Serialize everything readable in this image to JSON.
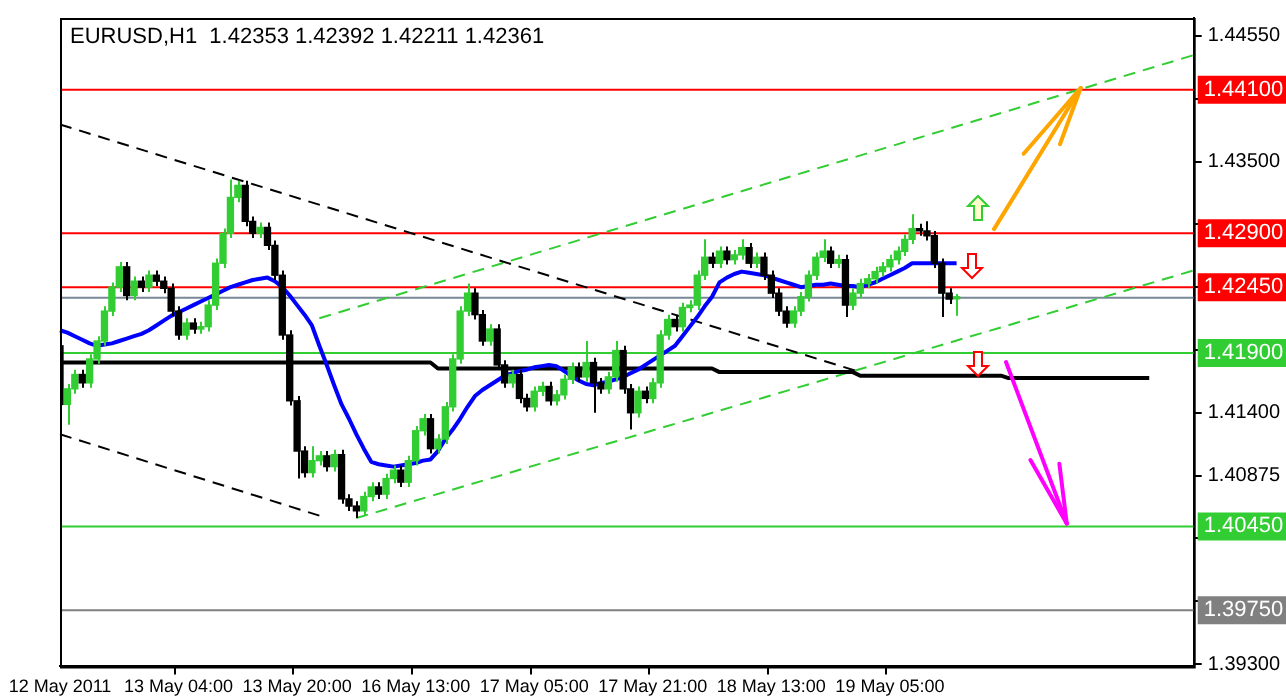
{
  "chart_data": {
    "type": "candlestick",
    "title": "EURUSD,H1  1.42353 1.42392 1.42211 1.42361",
    "categories": [
      "12 May 2011",
      null,
      null,
      null,
      null,
      null,
      null,
      null,
      null,
      null,
      null,
      null,
      null,
      null,
      null,
      null,
      "13 May 04:00",
      null,
      null,
      null,
      null,
      null,
      null,
      null,
      null,
      null,
      null,
      null,
      null,
      null,
      null,
      null,
      "13 May 20:00",
      null,
      null,
      null,
      null,
      null,
      null,
      null,
      null,
      null,
      null,
      null,
      null,
      null,
      null,
      null,
      "16 May 13:00",
      null,
      null,
      null,
      null,
      null,
      null,
      null,
      null,
      null,
      null,
      null,
      null,
      null,
      null,
      null,
      "17 May 05:00",
      null,
      null,
      null,
      null,
      null,
      null,
      null,
      null,
      null,
      null,
      null,
      null,
      null,
      null,
      null,
      "17 May 21:00",
      null,
      null,
      null,
      null,
      null,
      null,
      null,
      null,
      null,
      null,
      null,
      null,
      null,
      null,
      null,
      "18 May 13:00",
      null,
      null,
      null,
      null,
      null,
      null,
      null,
      null,
      null,
      null,
      null,
      null,
      null,
      null,
      null,
      "19 May 05:00",
      null,
      null,
      null,
      null,
      null,
      null,
      null,
      null,
      null,
      null,
      null,
      null,
      null,
      null,
      null,
      null,
      null,
      null,
      null,
      null,
      null,
      null,
      null,
      null,
      null,
      null,
      null,
      null,
      null,
      null,
      null,
      null,
      null,
      null,
      null,
      null,
      null,
      null,
      null,
      null,
      null
    ],
    "series": [
      {
        "type": "candlestick",
        "ohlc": [
          [
            1.4196,
            1.42,
            1.4143,
            1.4147
          ],
          [
            1.4147,
            1.4164,
            1.413,
            1.416
          ],
          [
            1.416,
            1.4176,
            1.4156,
            1.4172
          ],
          [
            1.4172,
            1.4176,
            1.4161,
            1.4165
          ],
          [
            1.4165,
            1.4189,
            1.4161,
            1.4185
          ],
          [
            1.4185,
            1.4204,
            1.4181,
            1.42
          ],
          [
            1.42,
            1.4229,
            1.4196,
            1.4225
          ],
          [
            1.4225,
            1.4249,
            1.4221,
            1.4245
          ],
          [
            1.4245,
            1.4266,
            1.4241,
            1.4262
          ],
          [
            1.4262,
            1.4266,
            1.4234,
            1.4238
          ],
          [
            1.4238,
            1.4254,
            1.4234,
            1.425
          ],
          [
            1.425,
            1.4254,
            1.4241,
            1.4245
          ],
          [
            1.4245,
            1.4259,
            1.4241,
            1.4255
          ],
          [
            1.4255,
            1.4259,
            1.4246,
            1.425
          ],
          [
            1.425,
            1.4254,
            1.424,
            1.4244
          ],
          [
            1.4244,
            1.4248,
            1.4221,
            1.4225
          ],
          [
            1.4225,
            1.4229,
            1.4201,
            1.4205
          ],
          [
            1.4205,
            1.4219,
            1.4201,
            1.4215
          ],
          [
            1.4215,
            1.4219,
            1.4206,
            1.421
          ],
          [
            1.421,
            1.4216,
            1.4206,
            1.4212
          ],
          [
            1.4212,
            1.4234,
            1.4208,
            1.423
          ],
          [
            1.423,
            1.4269,
            1.4226,
            1.4265
          ],
          [
            1.4265,
            1.4294,
            1.4261,
            1.429
          ],
          [
            1.429,
            1.4335,
            1.4286,
            1.432
          ],
          [
            1.432,
            1.4334,
            1.4316,
            1.433
          ],
          [
            1.433,
            1.4334,
            1.4296,
            1.43
          ],
          [
            1.43,
            1.4304,
            1.4286,
            1.429
          ],
          [
            1.429,
            1.4299,
            1.4286,
            1.4295
          ],
          [
            1.4295,
            1.4299,
            1.4276,
            1.428
          ],
          [
            1.428,
            1.4284,
            1.4251,
            1.4255
          ],
          [
            1.4255,
            1.4259,
            1.4201,
            1.4205
          ],
          [
            1.4205,
            1.4209,
            1.4146,
            1.415
          ],
          [
            1.415,
            1.4154,
            1.4085,
            1.4108
          ],
          [
            1.4108,
            1.4112,
            1.4086,
            1.409
          ],
          [
            1.409,
            1.4112,
            1.4086,
            1.41
          ],
          [
            1.41,
            1.4108,
            1.4096,
            1.4104
          ],
          [
            1.4104,
            1.4108,
            1.4091,
            1.4095
          ],
          [
            1.4095,
            1.4109,
            1.4091,
            1.4105
          ],
          [
            1.4105,
            1.4109,
            1.4064,
            1.4068
          ],
          [
            1.4068,
            1.4072,
            1.4058,
            1.4062
          ],
          [
            1.4062,
            1.4066,
            1.4052,
            1.4058
          ],
          [
            1.4058,
            1.4074,
            1.4054,
            1.407
          ],
          [
            1.407,
            1.4082,
            1.4066,
            1.4078
          ],
          [
            1.4078,
            1.4082,
            1.4068,
            1.4072
          ],
          [
            1.4072,
            1.4089,
            1.4068,
            1.4085
          ],
          [
            1.4085,
            1.4096,
            1.4081,
            1.4092
          ],
          [
            1.4092,
            1.4096,
            1.4078,
            1.4082
          ],
          [
            1.4082,
            1.4104,
            1.4078,
            1.41
          ],
          [
            1.41,
            1.4129,
            1.4096,
            1.4125
          ],
          [
            1.4125,
            1.4139,
            1.4121,
            1.4135
          ],
          [
            1.4135,
            1.4139,
            1.4106,
            1.411
          ],
          [
            1.411,
            1.4122,
            1.4106,
            1.4118
          ],
          [
            1.4118,
            1.4149,
            1.4114,
            1.4145
          ],
          [
            1.4145,
            1.4189,
            1.4141,
            1.4185
          ],
          [
            1.4185,
            1.4229,
            1.4181,
            1.4225
          ],
          [
            1.4225,
            1.4248,
            1.4221,
            1.424
          ],
          [
            1.424,
            1.4244,
            1.4218,
            1.4222
          ],
          [
            1.4222,
            1.4226,
            1.4196,
            1.42
          ],
          [
            1.42,
            1.4214,
            1.4196,
            1.421
          ],
          [
            1.421,
            1.4214,
            1.4176,
            1.418
          ],
          [
            1.418,
            1.4184,
            1.4161,
            1.4165
          ],
          [
            1.4165,
            1.4176,
            1.4161,
            1.4172
          ],
          [
            1.4172,
            1.4176,
            1.4148,
            1.4152
          ],
          [
            1.4152,
            1.4156,
            1.4141,
            1.4145
          ],
          [
            1.4145,
            1.4162,
            1.4141,
            1.4158
          ],
          [
            1.4158,
            1.4166,
            1.4154,
            1.4162
          ],
          [
            1.4162,
            1.4166,
            1.4146,
            1.415
          ],
          [
            1.415,
            1.4159,
            1.4146,
            1.4155
          ],
          [
            1.4155,
            1.4172,
            1.4151,
            1.4168
          ],
          [
            1.4168,
            1.4182,
            1.4164,
            1.4178
          ],
          [
            1.4178,
            1.4182,
            1.4166,
            1.417
          ],
          [
            1.417,
            1.42,
            1.4166,
            1.4182
          ],
          [
            1.4182,
            1.4186,
            1.414,
            1.4165
          ],
          [
            1.4165,
            1.4169,
            1.4156,
            1.416
          ],
          [
            1.416,
            1.4174,
            1.4156,
            1.417
          ],
          [
            1.417,
            1.42,
            1.4166,
            1.4192
          ],
          [
            1.4192,
            1.4196,
            1.4156,
            1.416
          ],
          [
            1.416,
            1.4164,
            1.4126,
            1.414
          ],
          [
            1.414,
            1.4162,
            1.4136,
            1.4158
          ],
          [
            1.4158,
            1.4162,
            1.4148,
            1.4152
          ],
          [
            1.4152,
            1.4169,
            1.4148,
            1.4165
          ],
          [
            1.4165,
            1.4209,
            1.4161,
            1.4205
          ],
          [
            1.4205,
            1.4222,
            1.4201,
            1.4218
          ],
          [
            1.4218,
            1.4222,
            1.4208,
            1.4212
          ],
          [
            1.4212,
            1.4232,
            1.4208,
            1.4228
          ],
          [
            1.4228,
            1.4234,
            1.4224,
            1.423
          ],
          [
            1.423,
            1.4259,
            1.4226,
            1.4255
          ],
          [
            1.4255,
            1.4285,
            1.4251,
            1.427
          ],
          [
            1.427,
            1.4274,
            1.4261,
            1.4265
          ],
          [
            1.4265,
            1.4279,
            1.4261,
            1.4275
          ],
          [
            1.4275,
            1.4279,
            1.4264,
            1.4268
          ],
          [
            1.4268,
            1.4276,
            1.4264,
            1.4272
          ],
          [
            1.4272,
            1.4285,
            1.4268,
            1.4278
          ],
          [
            1.4278,
            1.4282,
            1.4261,
            1.4265
          ],
          [
            1.4265,
            1.4274,
            1.4261,
            1.427
          ],
          [
            1.427,
            1.4274,
            1.4251,
            1.4255
          ],
          [
            1.4255,
            1.4259,
            1.4236,
            1.424
          ],
          [
            1.424,
            1.4244,
            1.4221,
            1.4225
          ],
          [
            1.4225,
            1.4229,
            1.4211,
            1.4215
          ],
          [
            1.4215,
            1.4229,
            1.4211,
            1.4225
          ],
          [
            1.4225,
            1.4241,
            1.4221,
            1.4237
          ],
          [
            1.4237,
            1.4259,
            1.4233,
            1.4255
          ],
          [
            1.4255,
            1.4274,
            1.4251,
            1.427
          ],
          [
            1.427,
            1.4285,
            1.4266,
            1.4275
          ],
          [
            1.4275,
            1.4279,
            1.4261,
            1.4265
          ],
          [
            1.4265,
            1.4272,
            1.4261,
            1.4268
          ],
          [
            1.4268,
            1.4272,
            1.422,
            1.423
          ],
          [
            1.423,
            1.4244,
            1.4226,
            1.424
          ],
          [
            1.424,
            1.4252,
            1.4236,
            1.4248
          ],
          [
            1.4248,
            1.4256,
            1.4244,
            1.4252
          ],
          [
            1.4252,
            1.4262,
            1.4248,
            1.4258
          ],
          [
            1.4258,
            1.4266,
            1.4254,
            1.4262
          ],
          [
            1.4262,
            1.4272,
            1.4258,
            1.4268
          ],
          [
            1.4268,
            1.4279,
            1.4264,
            1.4275
          ],
          [
            1.4275,
            1.4289,
            1.4271,
            1.4285
          ],
          [
            1.4285,
            1.4306,
            1.4281,
            1.4294
          ],
          [
            1.4294,
            1.4298,
            1.4288,
            1.4292
          ],
          [
            1.4292,
            1.43,
            1.4284,
            1.4288
          ],
          [
            1.4288,
            1.4292,
            1.4261,
            1.4265
          ],
          [
            1.4265,
            1.4269,
            1.422,
            1.424
          ],
          [
            1.424,
            1.4244,
            1.4231,
            1.4235
          ],
          [
            1.42353,
            1.42392,
            1.42211,
            1.42361
          ],
          null,
          null,
          null,
          null,
          null,
          null,
          null,
          null,
          null,
          null,
          null,
          null,
          null,
          null,
          null,
          null,
          null,
          null,
          null,
          null,
          null,
          null,
          null,
          null,
          null,
          null,
          null,
          null,
          null,
          null,
          null,
          null
        ],
        "colors": [
          "#000000",
          "#32cd32",
          "#32cd32",
          "#000000",
          "#32cd32",
          "#32cd32",
          "#32cd32",
          "#32cd32",
          "#32cd32",
          "#000000",
          "#32cd32",
          "#000000",
          "#32cd32",
          "#000000",
          "#000000",
          "#000000",
          "#000000",
          "#32cd32",
          "#000000",
          "#32cd32",
          "#32cd32",
          "#32cd32",
          "#32cd32",
          "#32cd32",
          "#32cd32",
          "#000000",
          "#000000",
          "#32cd32",
          "#000000",
          "#000000",
          "#000000",
          "#000000",
          "#000000",
          "#000000",
          "#32cd32",
          "#32cd32",
          "#000000",
          "#32cd32",
          "#000000",
          "#000000",
          "#000000",
          "#32cd32",
          "#32cd32",
          "#000000",
          "#32cd32",
          "#32cd32",
          "#000000",
          "#32cd32",
          "#32cd32",
          "#32cd32",
          "#000000",
          "#32cd32",
          "#32cd32",
          "#32cd32",
          "#32cd32",
          "#32cd32",
          "#000000",
          "#000000",
          "#32cd32",
          "#000000",
          "#000000",
          "#32cd32",
          "#000000",
          "#000000",
          "#32cd32",
          "#32cd32",
          "#000000",
          "#32cd32",
          "#32cd32",
          "#32cd32",
          "#000000",
          "#32cd32",
          "#000000",
          "#000000",
          "#32cd32",
          "#32cd32",
          "#000000",
          "#000000",
          "#32cd32",
          "#000000",
          "#32cd32",
          "#32cd32",
          "#32cd32",
          "#000000",
          "#32cd32",
          "#32cd32",
          "#32cd32",
          "#32cd32",
          "#000000",
          "#32cd32",
          "#000000",
          "#32cd32",
          "#32cd32",
          "#000000",
          "#32cd32",
          "#000000",
          "#000000",
          "#000000",
          "#000000",
          "#32cd32",
          "#32cd32",
          "#32cd32",
          "#32cd32",
          "#32cd32",
          "#000000",
          "#32cd32",
          "#000000",
          "#32cd32",
          "#32cd32",
          "#32cd32",
          "#32cd32",
          "#32cd32",
          "#32cd32",
          "#32cd32",
          "#32cd32",
          "#32cd32",
          "#000000",
          "#000000",
          "#000000",
          "#000000",
          "#000000",
          "#32cd32",
          null,
          null,
          null,
          null,
          null,
          null,
          null,
          null,
          null,
          null,
          null,
          null,
          null,
          null,
          null,
          null,
          null,
          null,
          null,
          null,
          null,
          null,
          null,
          null,
          null,
          null,
          null,
          null,
          null,
          null,
          null,
          null
        ]
      },
      {
        "type": "line",
        "color": "#0000ff",
        "line_style": "solid",
        "values": [
          1.4209,
          1.4207,
          1.4204,
          1.4201,
          1.4198,
          1.4196,
          1.4197,
          1.4198,
          1.42,
          1.4202,
          1.4204,
          1.4206,
          1.4209,
          1.4213,
          1.4217,
          1.4221,
          1.4224,
          1.4227,
          1.423,
          1.4233,
          1.4236,
          1.4239,
          1.4242,
          1.4245,
          1.4247,
          1.4249,
          1.4251,
          1.4252,
          1.4253,
          1.425,
          1.4245,
          1.4238,
          1.423,
          1.4222,
          1.4213,
          1.4196,
          1.418,
          1.4163,
          1.4147,
          1.4135,
          1.4122,
          1.411,
          1.4099,
          1.4097,
          1.4096,
          1.4095,
          1.4096,
          1.4097,
          1.4098,
          1.41,
          1.4101,
          1.4108,
          1.4118,
          1.4126,
          1.4135,
          1.4145,
          1.4154,
          1.4159,
          1.4163,
          1.4167,
          1.4171,
          1.4173,
          1.4175,
          1.4176,
          1.4178,
          1.4179,
          1.418,
          1.4179,
          1.4175,
          1.4171,
          1.4167,
          1.4164,
          1.4163,
          1.4165,
          1.4166,
          1.4168,
          1.417,
          1.4173,
          1.4176,
          1.418,
          1.4184,
          1.4188,
          1.4192,
          1.4196,
          1.4204,
          1.4212,
          1.422,
          1.4229,
          1.4237,
          1.4249,
          1.4253,
          1.4256,
          1.4258,
          1.4257,
          1.4256,
          1.4255,
          1.4253,
          1.4251,
          1.4249,
          1.4247,
          1.4245,
          1.4246,
          1.4247,
          1.4247,
          1.4248,
          1.4247,
          1.4246,
          1.4246,
          1.4245,
          1.4247,
          1.4249,
          1.4252,
          1.4255,
          1.4258,
          1.4261,
          1.4265,
          1.4265,
          1.4265,
          1.4265,
          1.4265,
          1.4265,
          1.4265,
          null,
          null,
          null,
          null,
          null,
          null,
          null,
          null,
          null,
          null,
          null,
          null,
          null,
          null,
          null,
          null,
          null,
          null,
          null,
          null,
          null,
          null,
          null,
          null,
          null,
          null,
          null,
          null,
          null,
          null,
          null,
          null
        ]
      },
      {
        "type": "line",
        "color": "#000000",
        "line_style": "solid",
        "values": [
          1.4182,
          1.4182,
          1.4182,
          1.4182,
          1.4182,
          1.4182,
          1.4182,
          1.4182,
          1.4182,
          1.4182,
          1.4182,
          1.4182,
          1.4182,
          1.4182,
          1.4182,
          1.4182,
          1.4182,
          1.4182,
          1.4182,
          1.4182,
          1.4182,
          1.4182,
          1.4182,
          1.4182,
          1.4182,
          1.4182,
          1.4182,
          1.4182,
          1.4182,
          1.4182,
          1.4182,
          1.4182,
          1.4182,
          1.4182,
          1.4182,
          1.4182,
          1.4182,
          1.4182,
          1.4182,
          1.4182,
          1.4182,
          1.4182,
          1.4182,
          1.4182,
          1.4182,
          1.4182,
          1.4182,
          1.4182,
          1.4182,
          1.4182,
          1.4182,
          1.4177,
          1.4177,
          1.4177,
          1.4177,
          1.4177,
          1.4177,
          1.4177,
          1.4177,
          1.4177,
          1.4177,
          1.4177,
          1.4177,
          1.4177,
          1.4177,
          1.4177,
          1.4177,
          1.4177,
          1.4177,
          1.4177,
          1.4177,
          1.4177,
          1.4177,
          1.4177,
          1.4177,
          1.4177,
          1.4177,
          1.4177,
          1.4177,
          1.4177,
          1.4177,
          1.4177,
          1.4177,
          1.4177,
          1.4177,
          1.4177,
          1.4177,
          1.4177,
          1.4177,
          1.4174,
          1.4174,
          1.4174,
          1.4174,
          1.4174,
          1.4174,
          1.4174,
          1.4174,
          1.4174,
          1.4174,
          1.4174,
          1.4174,
          1.4174,
          1.4174,
          1.4174,
          1.4174,
          1.4174,
          1.4174,
          1.4174,
          1.4171,
          1.4171,
          1.4171,
          1.4171,
          1.4171,
          1.4171,
          1.4171,
          1.4171,
          1.4171,
          1.4171,
          1.4171,
          1.4171,
          1.4171,
          1.4171,
          1.4171,
          1.4171,
          1.4171,
          1.4171,
          1.4171,
          1.4171,
          1.4169,
          1.4169,
          1.4169,
          1.4169,
          1.4169,
          1.4169,
          1.4169,
          1.4169,
          1.4169,
          1.4169,
          1.4169,
          1.4169,
          1.4169,
          1.4169,
          1.4169,
          1.4169,
          1.4169,
          1.4169,
          1.4169,
          1.4169,
          null,
          null,
          null,
          null,
          null,
          null
        ]
      },
      {
        "type": "line",
        "color": "#000000",
        "line_style": "dashed",
        "values": [
          1.4381,
          null,
          null,
          null,
          null,
          null,
          null,
          null,
          null,
          null,
          null,
          null,
          null,
          null,
          null,
          null,
          null,
          null,
          null,
          null,
          null,
          null,
          null,
          null,
          null,
          null,
          null,
          null,
          null,
          null,
          null,
          null,
          null,
          null,
          null,
          null,
          null,
          null,
          null,
          null,
          null,
          null,
          null,
          null,
          null,
          null,
          null,
          null,
          null,
          null,
          null,
          null,
          null,
          null,
          null,
          null,
          null,
          null,
          null,
          null,
          null,
          null,
          null,
          null,
          null,
          null,
          null,
          null,
          null,
          null,
          null,
          null,
          null,
          null,
          null,
          null,
          null,
          null,
          null,
          null,
          null,
          null,
          null,
          null,
          null,
          null,
          null,
          null,
          null,
          null,
          null,
          null,
          null,
          null,
          null,
          null,
          null,
          null,
          null,
          null,
          null,
          null,
          null,
          null,
          null,
          null,
          null,
          null,
          1.4174,
          null,
          null,
          null,
          null,
          null,
          null,
          null,
          null,
          null,
          null,
          null,
          null,
          null,
          null,
          null,
          null,
          null,
          null,
          null,
          null,
          null,
          null,
          null,
          null,
          null,
          null,
          null,
          null,
          null,
          null,
          null,
          null,
          null,
          null,
          null,
          null,
          null,
          null,
          null,
          null,
          null,
          null,
          null,
          null,
          null
        ]
      },
      {
        "type": "line",
        "color": "#000000",
        "line_style": "dashed",
        "values": [
          1.4122,
          null,
          null,
          null,
          null,
          null,
          null,
          null,
          null,
          null,
          null,
          null,
          null,
          null,
          null,
          null,
          null,
          null,
          null,
          null,
          null,
          null,
          null,
          null,
          null,
          null,
          null,
          null,
          null,
          null,
          null,
          null,
          null,
          null,
          null,
          1.4054,
          null,
          null,
          null,
          null,
          null,
          null,
          null,
          null,
          null,
          null,
          null,
          null,
          null,
          null,
          null,
          null,
          null,
          null,
          null,
          null,
          null,
          null,
          null,
          null,
          null,
          null,
          null,
          null,
          null,
          null,
          null,
          null,
          null,
          null,
          null,
          null,
          null,
          null,
          null,
          null,
          null,
          null,
          null,
          null,
          null,
          null,
          null,
          null,
          null,
          null,
          null,
          null,
          null,
          null,
          null,
          null,
          null,
          null,
          null,
          null,
          null,
          null,
          null,
          null,
          null,
          null,
          null,
          null,
          null,
          null,
          null,
          null,
          null,
          null,
          null,
          null,
          null,
          null,
          null,
          null,
          null,
          null,
          null,
          null,
          null,
          null,
          null,
          null,
          null,
          null,
          null,
          null,
          null,
          null,
          null,
          null,
          null,
          null,
          null,
          null,
          null,
          null,
          null,
          null,
          null,
          null,
          null,
          null,
          null,
          null,
          null,
          null,
          null,
          null,
          null,
          null,
          null,
          null
        ]
      },
      {
        "type": "line",
        "color": "#32cd32",
        "line_style": "dashed",
        "values": [
          null,
          null,
          null,
          null,
          null,
          null,
          null,
          null,
          null,
          null,
          null,
          null,
          null,
          null,
          null,
          null,
          null,
          null,
          null,
          null,
          null,
          null,
          null,
          null,
          null,
          null,
          null,
          null,
          null,
          null,
          null,
          null,
          null,
          null,
          null,
          1.4219,
          null,
          null,
          null,
          null,
          null,
          null,
          null,
          null,
          null,
          null,
          null,
          null,
          null,
          null,
          null,
          null,
          null,
          null,
          null,
          null,
          null,
          null,
          null,
          null,
          null,
          null,
          null,
          null,
          null,
          null,
          null,
          null,
          null,
          null,
          null,
          null,
          null,
          null,
          null,
          null,
          null,
          null,
          null,
          null,
          null,
          null,
          null,
          null,
          null,
          null,
          null,
          null,
          null,
          null,
          null,
          null,
          null,
          null,
          null,
          null,
          null,
          null,
          null,
          null,
          null,
          null,
          null,
          null,
          null,
          null,
          null,
          null,
          null,
          null,
          null,
          null,
          null,
          null,
          null,
          null,
          null,
          null,
          null,
          null,
          null,
          null,
          null,
          null,
          null,
          null,
          null,
          null,
          null,
          null,
          null,
          null,
          null,
          null,
          null,
          null,
          null,
          null,
          null,
          null,
          null,
          null,
          null,
          null,
          null,
          null,
          null,
          null,
          null,
          null,
          null,
          null,
          null,
          1.4439
        ]
      },
      {
        "type": "line",
        "color": "#32cd32",
        "line_style": "dashed",
        "values": [
          null,
          null,
          null,
          null,
          null,
          null,
          null,
          null,
          null,
          null,
          null,
          null,
          null,
          null,
          null,
          null,
          null,
          null,
          null,
          null,
          null,
          null,
          null,
          null,
          null,
          null,
          null,
          null,
          null,
          null,
          null,
          null,
          null,
          null,
          null,
          null,
          null,
          null,
          null,
          null,
          1.4052,
          null,
          null,
          null,
          null,
          null,
          null,
          null,
          null,
          null,
          null,
          null,
          null,
          null,
          null,
          null,
          null,
          null,
          null,
          null,
          null,
          null,
          null,
          null,
          null,
          null,
          null,
          null,
          null,
          null,
          null,
          null,
          null,
          null,
          null,
          null,
          null,
          null,
          null,
          null,
          null,
          null,
          null,
          null,
          null,
          null,
          null,
          null,
          null,
          null,
          null,
          null,
          null,
          null,
          null,
          null,
          null,
          null,
          null,
          null,
          null,
          null,
          null,
          null,
          null,
          null,
          null,
          null,
          null,
          null,
          null,
          null,
          null,
          null,
          null,
          null,
          null,
          null,
          null,
          null,
          null,
          null,
          null,
          null,
          null,
          null,
          null,
          null,
          null,
          null,
          null,
          null,
          null,
          null,
          null,
          null,
          null,
          null,
          null,
          null,
          null,
          null,
          null,
          null,
          null,
          null,
          null,
          null,
          null,
          null,
          null,
          null,
          null,
          1.4259
        ]
      }
    ],
    "ylim": [
      1.3928,
      1.447
    ],
    "yticks": [
      {
        "value": 1.4455,
        "label": "1.44550"
      },
      {
        "value": 1.44025,
        "label": null
      },
      {
        "value": 1.435,
        "label": "1.43500"
      },
      {
        "value": 1.42975,
        "label": null
      },
      {
        "value": 1.4245,
        "label": null
      },
      {
        "value": 1.41925,
        "label": null
      },
      {
        "value": 1.414,
        "label": "1.41400"
      },
      {
        "value": 1.40875,
        "label": "1.40875"
      },
      {
        "value": 1.4035,
        "label": null
      },
      {
        "value": 1.39825,
        "label": null
      },
      {
        "value": 1.393,
        "label": "1.39300"
      }
    ],
    "ref_lines": [
      {
        "axis": "y",
        "value": 1.441,
        "label": "1.44100",
        "color": "#ff0000"
      },
      {
        "axis": "y",
        "value": 1.429,
        "label": "1.42900",
        "color": "#ff0000"
      },
      {
        "axis": "y",
        "value": 1.4245,
        "label": "1.42450",
        "color": "#ff0000"
      },
      {
        "axis": "y",
        "value": 1.42361,
        "color": "#778899"
      },
      {
        "axis": "y",
        "value": 1.419,
        "label": "1.41900",
        "color": "#32cd32"
      },
      {
        "axis": "y",
        "value": 1.4045,
        "label": "1.40450",
        "color": "#32cd32"
      },
      {
        "axis": "y",
        "value": 1.3975,
        "label": "1.39750",
        "color": "#808080"
      }
    ],
    "grid": false,
    "legend": false,
    "marker": "none"
  }
}
